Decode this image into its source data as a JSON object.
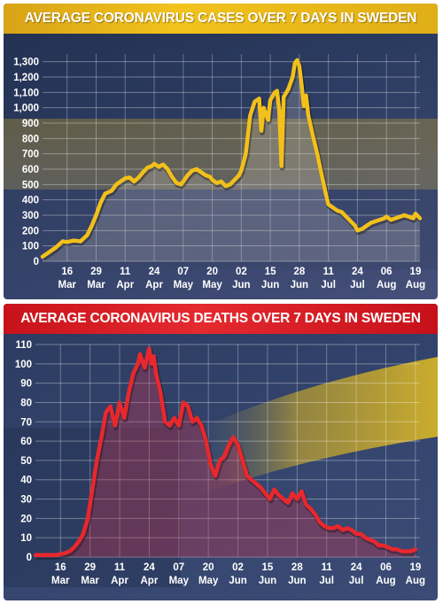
{
  "chart_data": [
    {
      "type": "line",
      "title": "AVERAGE CORONAVIRUS CASES OVER 7 DAYS IN SWEDEN",
      "xlabel": "",
      "ylabel": "",
      "ylim": [
        0,
        1350
      ],
      "yticks": [
        "0",
        "100",
        "200",
        "300",
        "400",
        "500",
        "600",
        "700",
        "800",
        "900",
        "1,000",
        "1,100",
        "1,200",
        "1,300"
      ],
      "ytick_values": [
        0,
        100,
        200,
        300,
        400,
        500,
        600,
        700,
        800,
        900,
        1000,
        1100,
        1200,
        1300
      ],
      "xticks": [
        {
          "day": "16",
          "month": "Mar"
        },
        {
          "day": "29",
          "month": "Mar"
        },
        {
          "day": "11",
          "month": "Apr"
        },
        {
          "day": "24",
          "month": "Apr"
        },
        {
          "day": "07",
          "month": "May"
        },
        {
          "day": "20",
          "month": "May"
        },
        {
          "day": "02",
          "month": "Jun"
        },
        {
          "day": "15",
          "month": "Jun"
        },
        {
          "day": "28",
          "month": "Jun"
        },
        {
          "day": "11",
          "month": "Jul"
        },
        {
          "day": "24",
          "month": "Jul"
        },
        {
          "day": "06",
          "month": "Aug"
        },
        {
          "day": "19",
          "month": "Aug"
        }
      ],
      "xtick_values": [
        16,
        29,
        42,
        55,
        68,
        81,
        94,
        107,
        120,
        133,
        146,
        159,
        172
      ],
      "x_range": [
        5,
        174
      ],
      "grid": true,
      "line_color": "#f2c01b",
      "x": [
        5,
        8,
        11,
        14,
        16,
        19,
        22,
        25,
        27,
        29,
        31,
        33,
        36,
        38,
        40,
        42,
        44,
        46,
        48,
        50,
        52,
        54,
        55,
        57,
        59,
        61,
        63,
        65,
        67,
        68,
        70,
        72,
        74,
        76,
        78,
        80,
        81,
        83,
        85,
        87,
        89,
        91,
        93,
        94,
        96,
        98,
        100,
        102,
        103,
        104,
        106,
        107,
        109,
        110,
        111,
        112,
        113,
        115,
        117,
        118,
        119,
        120,
        121,
        122,
        123,
        124,
        126,
        128,
        130,
        132,
        133,
        135,
        137,
        139,
        141,
        143,
        145,
        146,
        148,
        150,
        152,
        154,
        156,
        158,
        159,
        161,
        163,
        165,
        167,
        169,
        171,
        172,
        174
      ],
      "values": [
        30,
        60,
        90,
        130,
        125,
        135,
        130,
        170,
        230,
        300,
        380,
        440,
        460,
        500,
        520,
        540,
        545,
        520,
        545,
        580,
        610,
        620,
        635,
        615,
        630,
        600,
        550,
        510,
        500,
        520,
        560,
        590,
        600,
        580,
        560,
        550,
        530,
        510,
        520,
        490,
        500,
        530,
        560,
        590,
        700,
        950,
        1040,
        1060,
        850,
        1000,
        920,
        1050,
        1100,
        1110,
        980,
        620,
        1070,
        1120,
        1200,
        1290,
        1310,
        1270,
        1150,
        1010,
        1080,
        950,
        820,
        700,
        560,
        430,
        370,
        350,
        330,
        320,
        290,
        260,
        230,
        200,
        210,
        230,
        250,
        260,
        270,
        280,
        290,
        270,
        280,
        290,
        300,
        290,
        280,
        310,
        280
      ]
    },
    {
      "type": "line",
      "title": "AVERAGE CORONAVIRUS DEATHS OVER 7 DAYS IN SWEDEN",
      "xlabel": "",
      "ylabel": "",
      "ylim": [
        0,
        110
      ],
      "yticks": [
        "0",
        "10",
        "20",
        "30",
        "40",
        "50",
        "60",
        "70",
        "80",
        "90",
        "100",
        "110"
      ],
      "ytick_values": [
        0,
        10,
        20,
        30,
        40,
        50,
        60,
        70,
        80,
        90,
        100,
        110
      ],
      "xticks": [
        {
          "day": "16",
          "month": "Mar"
        },
        {
          "day": "29",
          "month": "Mar"
        },
        {
          "day": "11",
          "month": "Apr"
        },
        {
          "day": "24",
          "month": "Apr"
        },
        {
          "day": "07",
          "month": "May"
        },
        {
          "day": "20",
          "month": "May"
        },
        {
          "day": "02",
          "month": "Jun"
        },
        {
          "day": "15",
          "month": "Jun"
        },
        {
          "day": "28",
          "month": "Jun"
        },
        {
          "day": "11",
          "month": "Jul"
        },
        {
          "day": "24",
          "month": "Jul"
        },
        {
          "day": "06",
          "month": "Aug"
        },
        {
          "day": "19",
          "month": "Aug"
        }
      ],
      "xtick_values": [
        16,
        29,
        42,
        55,
        68,
        81,
        94,
        107,
        120,
        133,
        146,
        159,
        172
      ],
      "x_range": [
        5,
        174
      ],
      "grid": true,
      "line_color": "#e8282d",
      "x": [
        5,
        10,
        14,
        18,
        20,
        22,
        24,
        26,
        28,
        30,
        32,
        34,
        36,
        38,
        40,
        42,
        44,
        46,
        48,
        50,
        51,
        53,
        55,
        56,
        57,
        58,
        60,
        62,
        64,
        66,
        68,
        70,
        72,
        74,
        76,
        78,
        80,
        82,
        84,
        86,
        88,
        90,
        92,
        94,
        96,
        98,
        100,
        102,
        104,
        106,
        108,
        110,
        112,
        114,
        116,
        118,
        120,
        122,
        124,
        126,
        128,
        130,
        132,
        134,
        136,
        138,
        140,
        142,
        144,
        146,
        148,
        150,
        152,
        154,
        156,
        158,
        160,
        162,
        164,
        166,
        168,
        170,
        172
      ],
      "values": [
        1,
        1,
        1,
        2,
        3,
        5,
        8,
        12,
        20,
        35,
        50,
        62,
        75,
        78,
        68,
        80,
        72,
        85,
        95,
        100,
        105,
        98,
        108,
        100,
        104,
        95,
        85,
        70,
        68,
        72,
        68,
        80,
        78,
        70,
        72,
        68,
        60,
        48,
        42,
        50,
        52,
        58,
        62,
        58,
        50,
        42,
        40,
        38,
        36,
        33,
        30,
        35,
        32,
        30,
        28,
        33,
        30,
        34,
        27,
        25,
        22,
        18,
        16,
        15,
        15,
        16,
        14,
        15,
        14,
        12,
        12,
        10,
        9,
        8,
        6,
        6,
        5,
        4,
        4,
        3,
        3,
        3,
        4
      ]
    }
  ]
}
